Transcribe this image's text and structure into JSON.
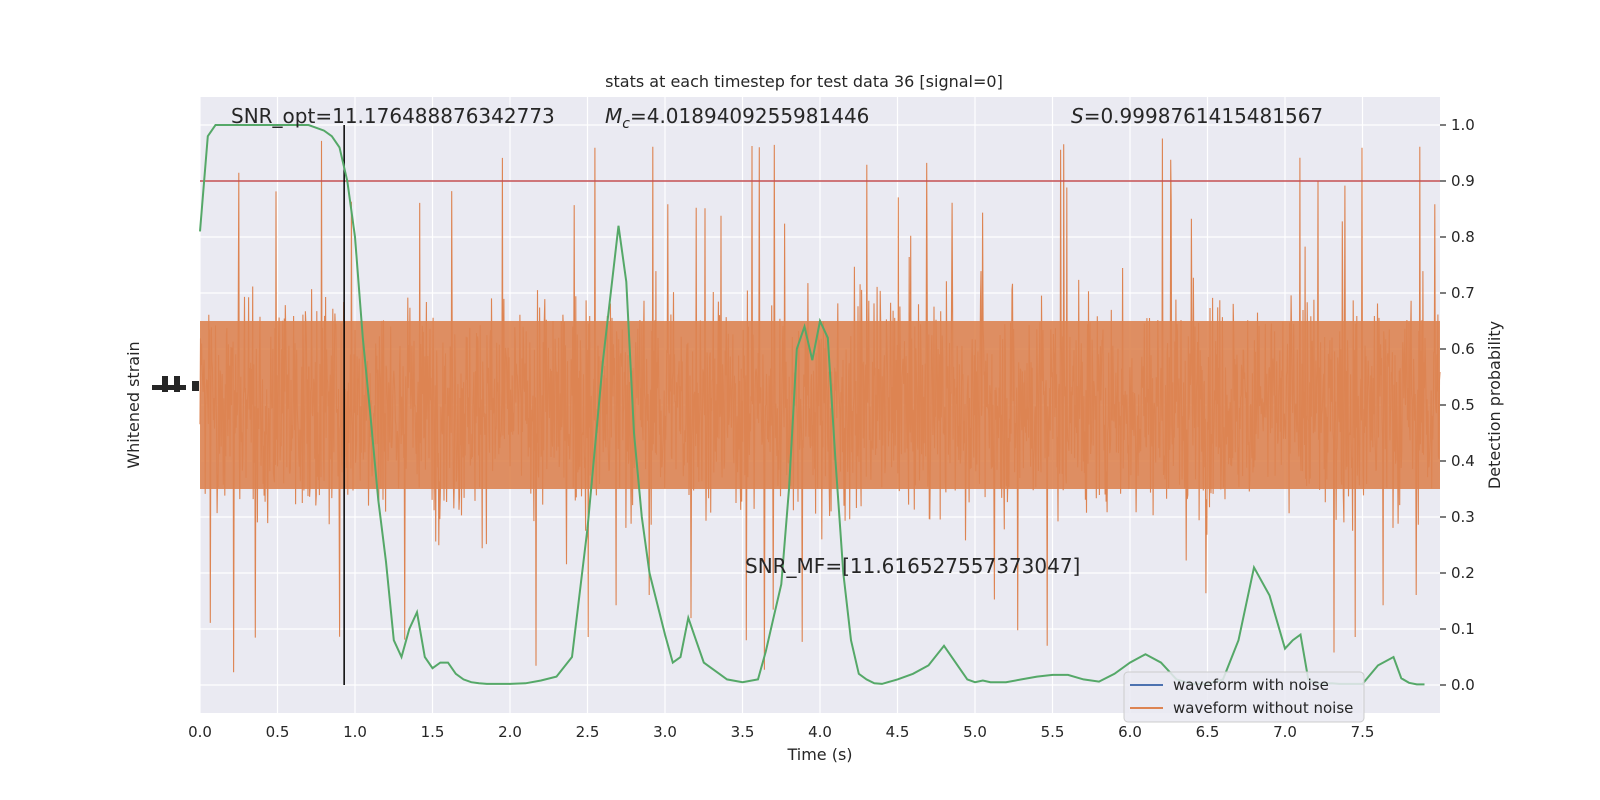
{
  "chart_data": {
    "type": "line",
    "title": "stats at each timestep for test data 36 [signal=0]",
    "xlabel": "Time (s)",
    "ylabel_left": "Whitened strain",
    "ylabel_right": "Detection probability",
    "xlim": [
      0,
      8.0
    ],
    "xticks": [
      "0.0",
      "0.5",
      "1.0",
      "1.5",
      "2.0",
      "2.5",
      "3.0",
      "3.5",
      "4.0",
      "4.5",
      "5.0",
      "5.5",
      "6.0",
      "6.5",
      "7.0",
      "7.5"
    ],
    "ylim_right": [
      -0.05,
      1.05
    ],
    "yticks_right": [
      "0.0",
      "0.1",
      "0.2",
      "0.3",
      "0.4",
      "0.5",
      "0.6",
      "0.7",
      "0.8",
      "0.9",
      "1.0"
    ],
    "grid": true,
    "annotations": {
      "snr_opt_prefix": "SNR_opt=",
      "snr_opt_value": "11.176488876342773",
      "mc_symbol": "M",
      "mc_subscript": "c",
      "mc_value": "=4.0189409255981446",
      "s_symbol": "S",
      "s_value": "=0.9998761415481567",
      "snr_mf": "SNR_MF=[11.616527557373047]"
    },
    "threshold": 0.9,
    "marker_time": 0.93,
    "series": [
      {
        "name": "waveform with noise",
        "color": "#4c72b0"
      },
      {
        "name": "waveform without noise",
        "color": "#dd8452"
      }
    ],
    "detection_probability": {
      "color": "#55a868",
      "x": [
        0.0,
        0.05,
        0.1,
        0.15,
        0.2,
        0.3,
        0.4,
        0.5,
        0.6,
        0.7,
        0.8,
        0.85,
        0.9,
        0.95,
        1.0,
        1.05,
        1.1,
        1.15,
        1.2,
        1.25,
        1.3,
        1.35,
        1.4,
        1.45,
        1.5,
        1.55,
        1.6,
        1.65,
        1.7,
        1.75,
        1.8,
        1.85,
        1.9,
        2.0,
        2.1,
        2.2,
        2.3,
        2.4,
        2.5,
        2.6,
        2.7,
        2.75,
        2.8,
        2.85,
        2.9,
        3.0,
        3.05,
        3.1,
        3.15,
        3.2,
        3.25,
        3.3,
        3.35,
        3.4,
        3.5,
        3.6,
        3.65,
        3.7,
        3.75,
        3.8,
        3.85,
        3.9,
        3.95,
        4.0,
        4.05,
        4.1,
        4.15,
        4.2,
        4.25,
        4.3,
        4.35,
        4.4,
        4.5,
        4.6,
        4.7,
        4.8,
        4.9,
        4.95,
        5.0,
        5.05,
        5.1,
        5.2,
        5.3,
        5.4,
        5.5,
        5.6,
        5.7,
        5.8,
        5.9,
        6.0,
        6.1,
        6.2,
        6.3,
        6.4,
        6.5,
        6.6,
        6.7,
        6.8,
        6.9,
        7.0,
        7.05,
        7.1,
        7.15,
        7.2,
        7.25,
        7.3,
        7.35,
        7.4,
        7.5,
        7.6,
        7.7,
        7.75,
        7.8,
        7.85,
        7.9
      ],
      "y": [
        0.81,
        0.98,
        1.0,
        1.0,
        1.0,
        1.0,
        1.0,
        1.0,
        1.0,
        1.0,
        0.99,
        0.98,
        0.96,
        0.9,
        0.8,
        0.62,
        0.48,
        0.33,
        0.22,
        0.08,
        0.05,
        0.1,
        0.13,
        0.05,
        0.03,
        0.04,
        0.04,
        0.02,
        0.01,
        0.005,
        0.003,
        0.002,
        0.002,
        0.002,
        0.003,
        0.008,
        0.015,
        0.05,
        0.28,
        0.58,
        0.82,
        0.72,
        0.45,
        0.3,
        0.2,
        0.09,
        0.04,
        0.05,
        0.12,
        0.08,
        0.04,
        0.03,
        0.02,
        0.01,
        0.005,
        0.01,
        0.06,
        0.12,
        0.18,
        0.35,
        0.6,
        0.64,
        0.58,
        0.65,
        0.62,
        0.4,
        0.2,
        0.08,
        0.02,
        0.01,
        0.003,
        0.002,
        0.01,
        0.02,
        0.035,
        0.07,
        0.03,
        0.01,
        0.005,
        0.008,
        0.005,
        0.005,
        0.01,
        0.015,
        0.018,
        0.018,
        0.01,
        0.006,
        0.02,
        0.04,
        0.055,
        0.04,
        0.01,
        0.002,
        0.002,
        0.01,
        0.08,
        0.21,
        0.16,
        0.065,
        0.08,
        0.09,
        0.01,
        0.003,
        0.002,
        0.003,
        0.002,
        0.002,
        0.002,
        0.035,
        0.05,
        0.012,
        0.004,
        0.001,
        0.001
      ]
    },
    "strain_amplitude": {
      "typical_half_width": 0.29,
      "peak_high": 1.0,
      "peak_low": 0.0
    }
  }
}
